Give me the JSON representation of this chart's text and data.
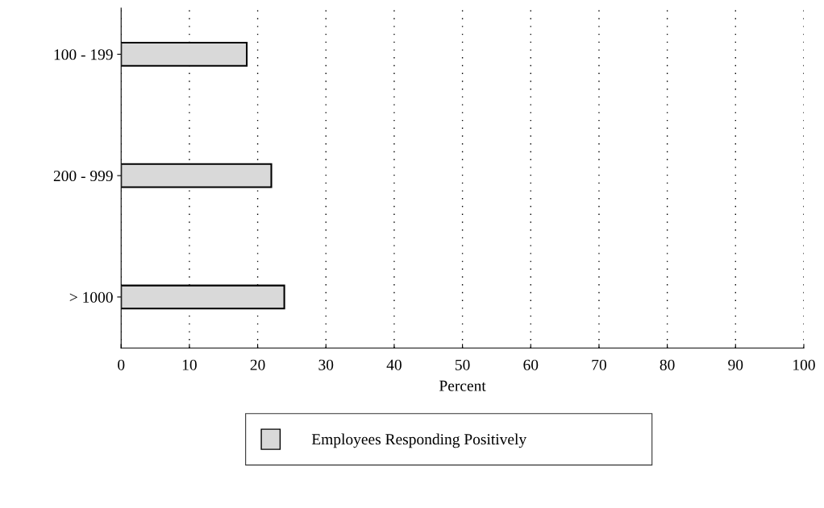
{
  "chart_data": {
    "type": "bar",
    "orientation": "horizontal",
    "categories": [
      "100 - 199",
      "200 - 999",
      "> 1000"
    ],
    "series": [
      {
        "name": "Employees Responding Positively",
        "color": "#d9d9d9",
        "values": [
          18.4,
          22.0,
          23.9
        ]
      }
    ],
    "xlabel": "Percent",
    "xlim": [
      0,
      100
    ],
    "xticks": [
      0,
      10,
      20,
      30,
      40,
      50,
      60,
      70,
      80,
      90,
      100
    ],
    "grid": "x",
    "legend": "bottom"
  }
}
